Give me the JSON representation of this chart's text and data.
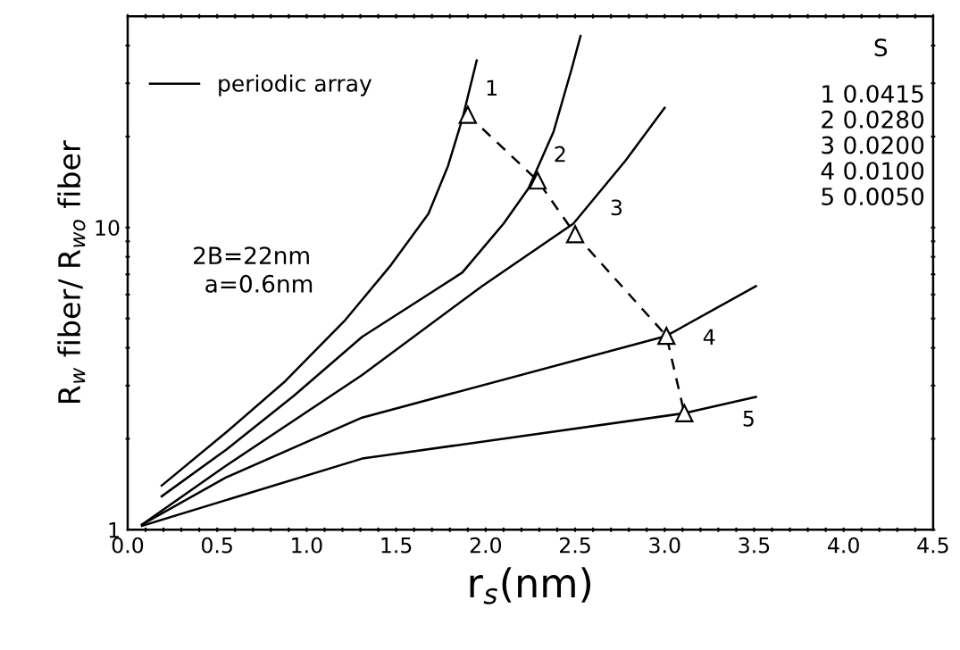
{
  "chart_data": {
    "type": "line",
    "xlabel": "r$_{s}$(nm)",
    "ylabel": "R$_{w}$ fiber/ R$_{wo}$ fiber",
    "log": "y",
    "xlim": [
      0,
      4.5
    ],
    "ylim": [
      1,
      50
    ],
    "xticks": [
      {
        "value": 0,
        "label": "0.0"
      },
      {
        "value": 0.1,
        "label": null
      },
      {
        "value": 0.2,
        "label": null
      },
      {
        "value": 0.3,
        "label": null
      },
      {
        "value": 0.4,
        "label": null
      },
      {
        "value": 0.5,
        "label": "0.5"
      },
      {
        "value": 0.6,
        "label": null
      },
      {
        "value": 0.7,
        "label": null
      },
      {
        "value": 0.8,
        "label": null
      },
      {
        "value": 0.9,
        "label": null
      },
      {
        "value": 1.0,
        "label": "1.0"
      },
      {
        "value": 1.1,
        "label": null
      },
      {
        "value": 1.2,
        "label": null
      },
      {
        "value": 1.3,
        "label": null
      },
      {
        "value": 1.4,
        "label": null
      },
      {
        "value": 1.5,
        "label": "1.5"
      },
      {
        "value": 1.6,
        "label": null
      },
      {
        "value": 1.7,
        "label": null
      },
      {
        "value": 1.8,
        "label": null
      },
      {
        "value": 1.9,
        "label": null
      },
      {
        "value": 2.0,
        "label": "2.0"
      },
      {
        "value": 2.1,
        "label": null
      },
      {
        "value": 2.2,
        "label": null
      },
      {
        "value": 2.3,
        "label": null
      },
      {
        "value": 2.4,
        "label": null
      },
      {
        "value": 2.5,
        "label": "2.5"
      },
      {
        "value": 2.6,
        "label": null
      },
      {
        "value": 2.7,
        "label": null
      },
      {
        "value": 2.8,
        "label": null
      },
      {
        "value": 2.9,
        "label": null
      },
      {
        "value": 3.0,
        "label": "3.0"
      },
      {
        "value": 3.1,
        "label": null
      },
      {
        "value": 3.2,
        "label": null
      },
      {
        "value": 3.3,
        "label": null
      },
      {
        "value": 3.4,
        "label": null
      },
      {
        "value": 3.5,
        "label": "3.5"
      },
      {
        "value": 3.6,
        "label": null
      },
      {
        "value": 3.7,
        "label": null
      },
      {
        "value": 3.8,
        "label": null
      },
      {
        "value": 3.9,
        "label": null
      },
      {
        "value": 4.0,
        "label": "4.0"
      },
      {
        "value": 4.1,
        "label": null
      },
      {
        "value": 4.2,
        "label": null
      },
      {
        "value": 4.3,
        "label": null
      },
      {
        "value": 4.4,
        "label": null
      },
      {
        "value": 4.5,
        "label": "4.5"
      }
    ],
    "yticks": [
      1,
      {
        "value": 2,
        "label": null
      },
      {
        "value": 3,
        "label": null
      },
      {
        "value": 4,
        "label": null
      },
      {
        "value": 5,
        "label": null
      },
      {
        "value": 6,
        "label": null
      },
      {
        "value": 7,
        "label": null
      },
      {
        "value": 8,
        "label": null
      },
      {
        "value": 9,
        "label": null
      },
      10,
      {
        "value": 20,
        "label": null
      },
      {
        "value": 30,
        "label": null
      },
      {
        "value": 40,
        "label": null
      }
    ],
    "grid": false,
    "legend": "top left",
    "series": [
      {
        "name": "periodic array",
        "color": "#000000",
        "line_style": "solid",
        "marker": "none",
        "x": [
          0.19,
          0.55,
          0.88,
          1.21,
          1.47,
          1.68,
          1.79,
          1.87,
          1.95
        ],
        "values": [
          1.4,
          2.1,
          3.1,
          4.9,
          7.5,
          11.1,
          16.0,
          22.9,
          35.7
        ]
      },
      {
        "color": "#000000",
        "line_style": "solid",
        "marker": "none",
        "x": [
          0.19,
          0.55,
          0.93,
          1.31,
          1.6,
          1.87,
          2.1,
          2.24,
          2.38,
          2.48,
          2.53
        ],
        "values": [
          1.29,
          1.84,
          2.78,
          4.35,
          5.6,
          7.1,
          10.3,
          13.5,
          20.8,
          33.4,
          43
        ]
      },
      {
        "color": "#000000",
        "line_style": "solid",
        "marker": "none",
        "x": [
          0.08,
          0.55,
          1.31,
          1.98,
          2.49,
          2.78,
          3.0
        ],
        "values": [
          1.04,
          1.63,
          3.25,
          6.4,
          10.3,
          16.6,
          24.9
        ]
      },
      {
        "color": "#000000",
        "line_style": "solid",
        "marker": "none",
        "x": [
          0.08,
          0.55,
          1.31,
          3.01,
          3.51
        ],
        "values": [
          1.04,
          1.49,
          2.35,
          4.38,
          6.4
        ]
      },
      {
        "color": "#000000",
        "line_style": "solid",
        "marker": "none",
        "x": [
          0.08,
          1.31,
          3.11,
          3.51
        ],
        "values": [
          1.03,
          1.72,
          2.43,
          2.75
        ]
      },
      {
        "color": "#000000",
        "line_style": "dashed",
        "marker": "triangle",
        "x": [
          1.9,
          2.29,
          2.5,
          3.01,
          3.11
        ],
        "values": [
          23.6,
          14.3,
          9.5,
          4.38,
          2.43
        ]
      }
    ],
    "annotations": [
      "1",
      "2",
      "3",
      "4",
      "5",
      "2B=22nm",
      "a=0.6nm",
      "S",
      "1 0.0415",
      "2 0.0280",
      "3 0.0200",
      "4 0.0100",
      "5 0.0050"
    ]
  }
}
